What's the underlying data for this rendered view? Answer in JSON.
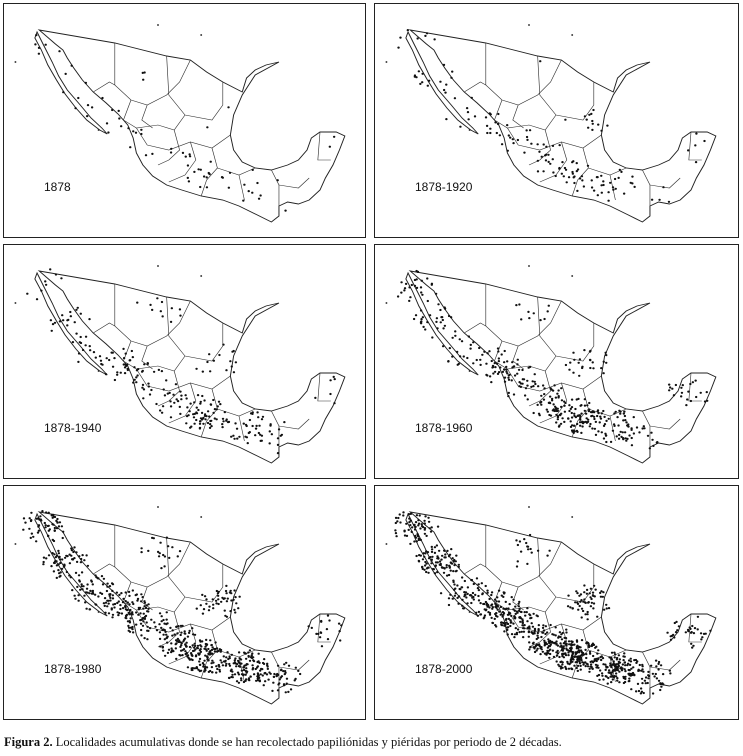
{
  "panels": [
    {
      "label": "1878",
      "density": 70
    },
    {
      "label": "1878-1920",
      "density": 150
    },
    {
      "label": "1878-1940",
      "density": 260
    },
    {
      "label": "1878-1960",
      "density": 420
    },
    {
      "label": "1878-1980",
      "density": 760
    },
    {
      "label": "1878-2000",
      "density": 980
    }
  ],
  "caption": {
    "figure_label": "Figura 2.",
    "text": "Localidades acumulativas donde se han recolectado papiliónidas y piéridas por periodo de 2 décadas."
  }
}
